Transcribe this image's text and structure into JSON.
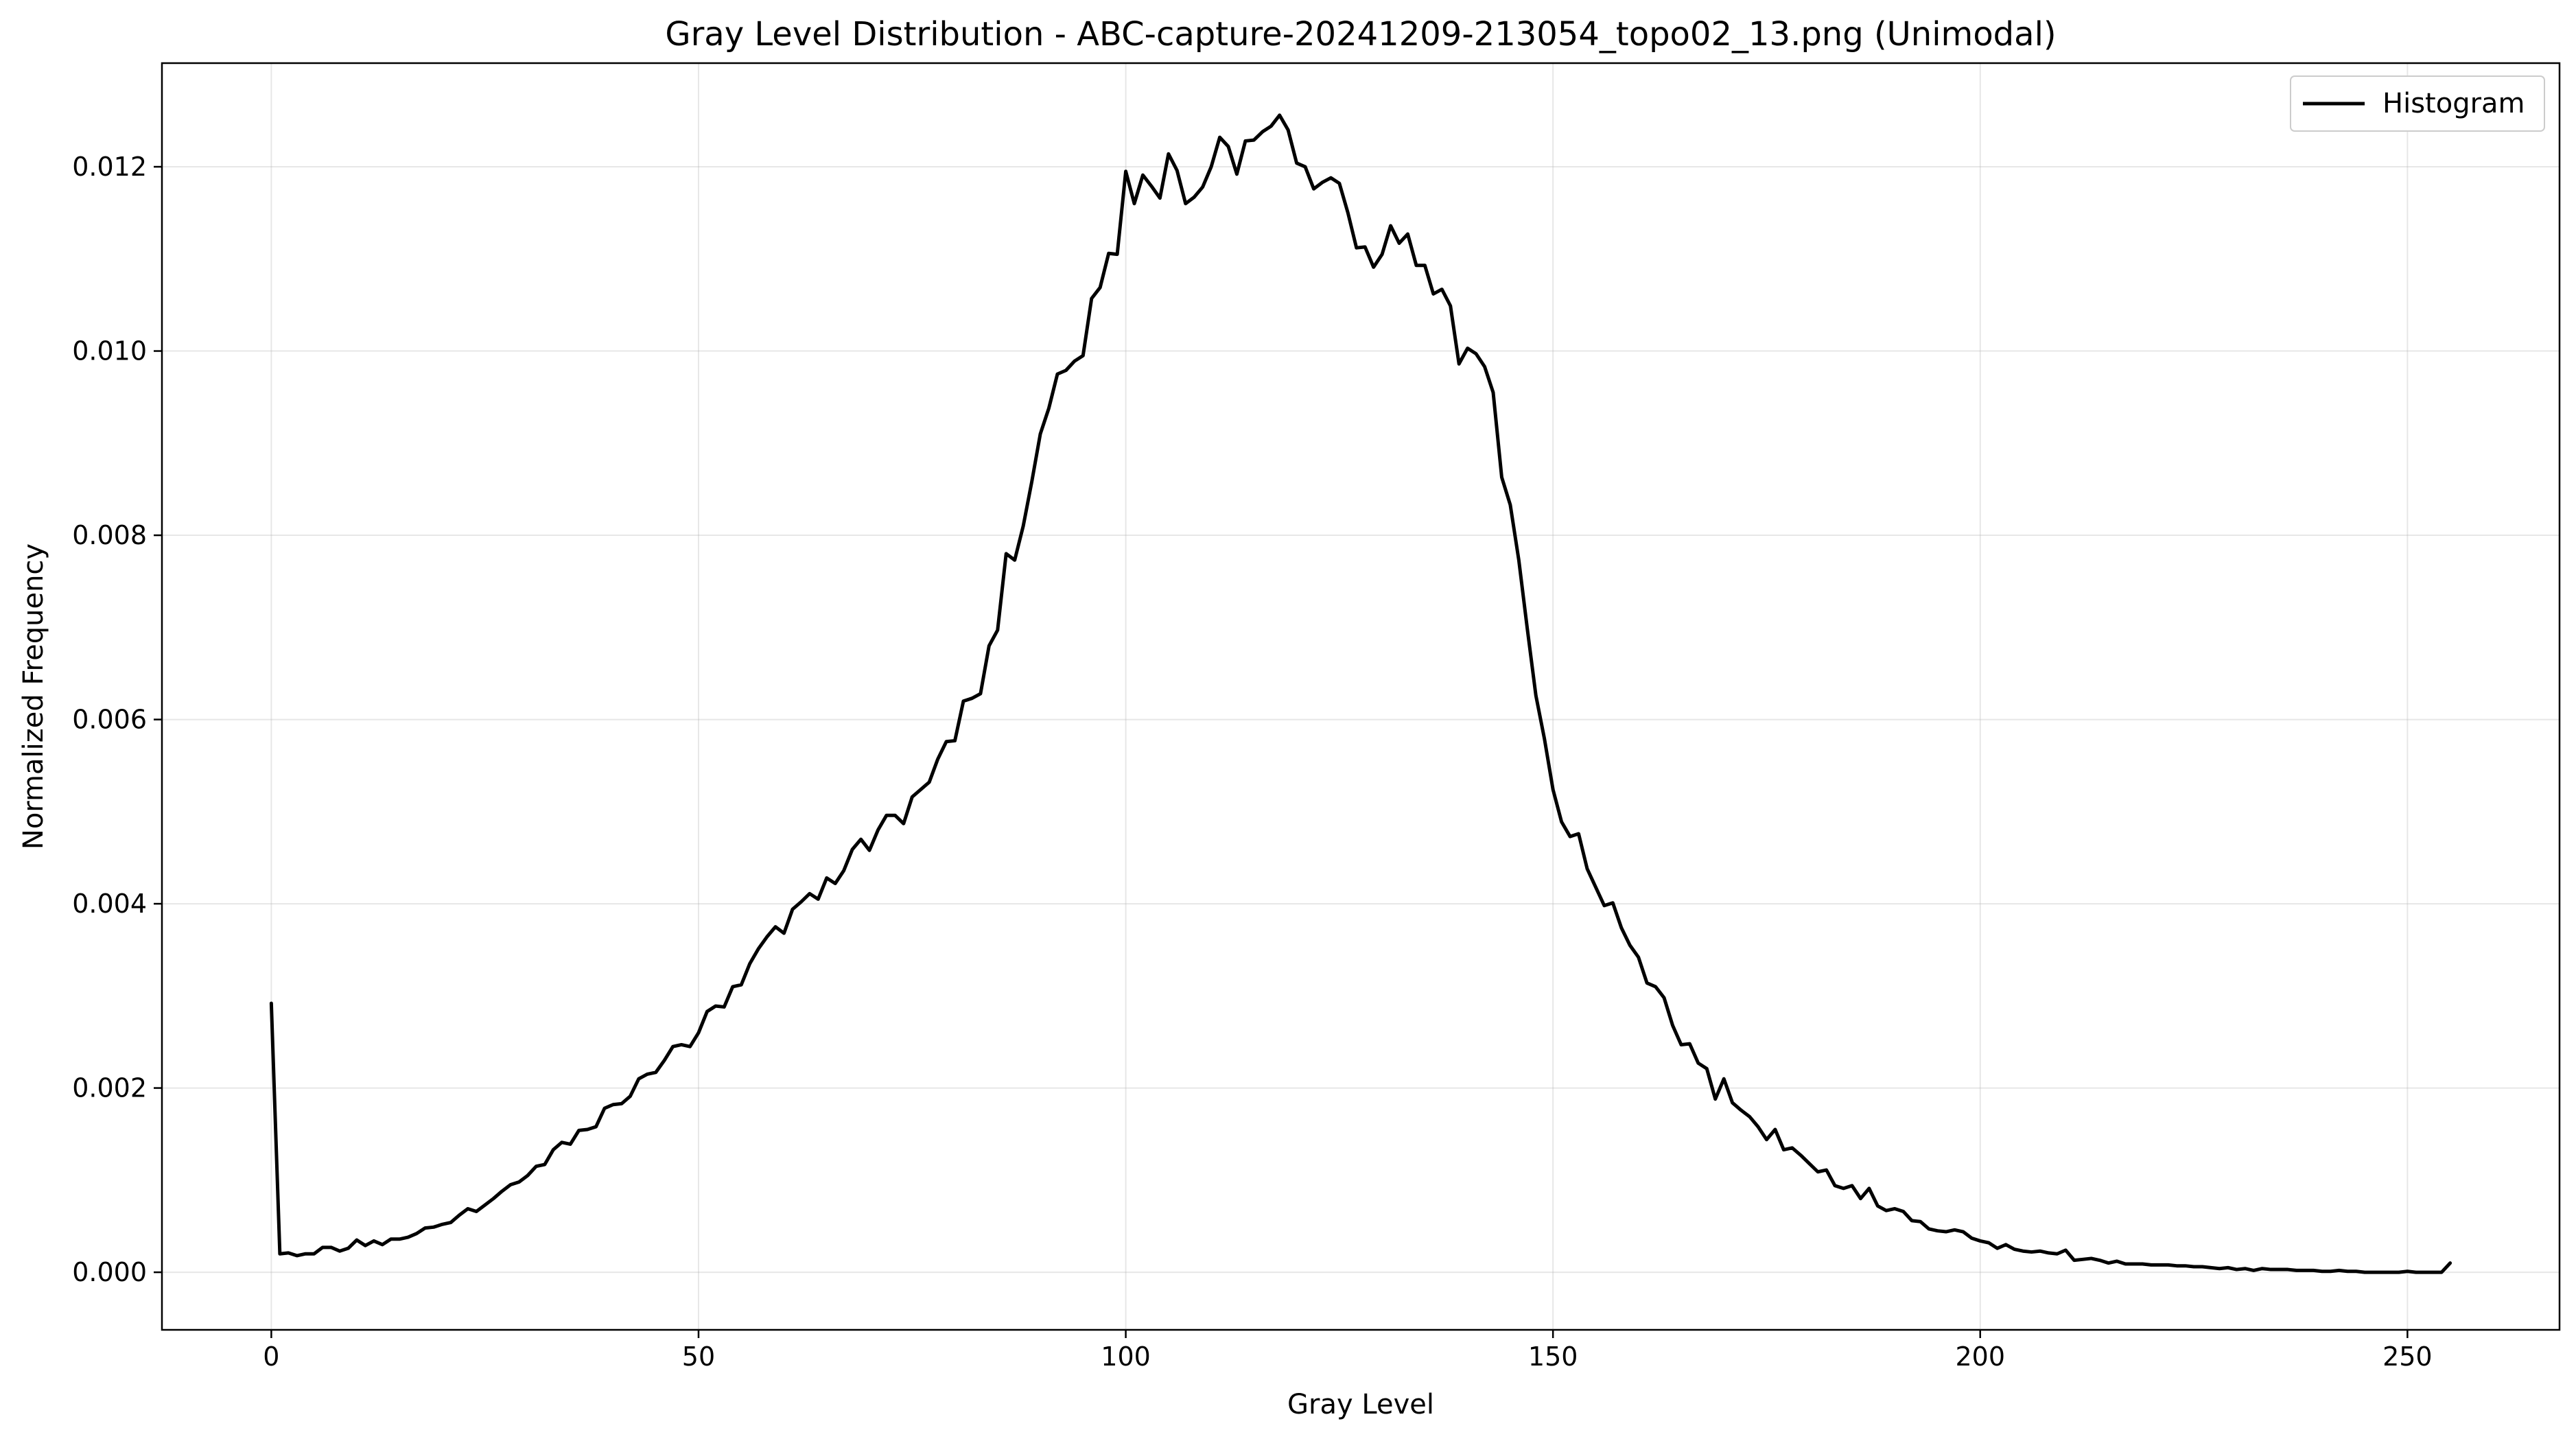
{
  "chart_data": {
    "type": "line",
    "title": "Gray Level Distribution - ABC-capture-20241209-213054_topo02_13.png (Unimodal)",
    "xlabel": "Gray Level",
    "ylabel": "Normalized Frequency",
    "xlim": [
      -12.8,
      267.8
    ],
    "ylim": [
      -0.000625,
      0.013125
    ],
    "x_ticks": [
      0,
      50,
      100,
      150,
      200,
      250
    ],
    "x_tick_labels": [
      "0",
      "50",
      "100",
      "150",
      "200",
      "250"
    ],
    "y_ticks": [
      0,
      0.002,
      0.004,
      0.006,
      0.008,
      0.01,
      0.012
    ],
    "y_tick_labels": [
      "0.000",
      "0.002",
      "0.004",
      "0.006",
      "0.008",
      "0.010",
      "0.012"
    ],
    "grid": true,
    "legend_position": "top-right",
    "line_color": "#000000",
    "series": [
      {
        "name": "Histogram",
        "x_start": 0,
        "x_step": 1,
        "values": [
          0.00292,
          0.0002,
          0.00021,
          0.00018,
          0.0002,
          0.0002,
          0.00027,
          0.00027,
          0.00023,
          0.00026,
          0.00035,
          0.00029,
          0.00034,
          0.0003,
          0.00036,
          0.00036,
          0.00038,
          0.00042,
          0.00048,
          0.00049,
          0.00052,
          0.00054,
          0.00062,
          0.00069,
          0.00066,
          0.00073,
          0.0008,
          0.00088,
          0.00095,
          0.00098,
          0.00105,
          0.00115,
          0.00117,
          0.00133,
          0.00141,
          0.00139,
          0.00154,
          0.00155,
          0.00158,
          0.00178,
          0.00182,
          0.00183,
          0.00191,
          0.0021,
          0.00215,
          0.00217,
          0.0023,
          0.00245,
          0.00247,
          0.00245,
          0.0026,
          0.00283,
          0.00289,
          0.00288,
          0.0031,
          0.00312,
          0.00335,
          0.00351,
          0.00364,
          0.00375,
          0.00368,
          0.00394,
          0.00402,
          0.00411,
          0.00405,
          0.00428,
          0.00422,
          0.00436,
          0.00459,
          0.0047,
          0.00458,
          0.0048,
          0.00496,
          0.00496,
          0.00487,
          0.00516,
          0.00524,
          0.00532,
          0.00557,
          0.00576,
          0.00577,
          0.0062,
          0.00623,
          0.00628,
          0.0068,
          0.00697,
          0.0078,
          0.00773,
          0.0081,
          0.00858,
          0.0091,
          0.00938,
          0.00975,
          0.00979,
          0.00989,
          0.00995,
          0.01057,
          0.01069,
          0.01106,
          0.01105,
          0.01195,
          0.0116,
          0.01191,
          0.01179,
          0.01166,
          0.01214,
          0.01196,
          0.0116,
          0.01167,
          0.01178,
          0.012,
          0.01232,
          0.01222,
          0.01192,
          0.01228,
          0.01229,
          0.01238,
          0.01244,
          0.01256,
          0.0124,
          0.01204,
          0.012,
          0.01176,
          0.01183,
          0.01188,
          0.01182,
          0.0115,
          0.01112,
          0.01113,
          0.01091,
          0.01105,
          0.01136,
          0.01117,
          0.01127,
          0.01093,
          0.01093,
          0.01062,
          0.01067,
          0.01049,
          0.00986,
          0.01003,
          0.00997,
          0.00983,
          0.00955,
          0.00863,
          0.00833,
          0.00773,
          0.00698,
          0.00626,
          0.00579,
          0.00524,
          0.00489,
          0.00473,
          0.00476,
          0.00438,
          0.00418,
          0.00398,
          0.00401,
          0.00374,
          0.00355,
          0.00342,
          0.00314,
          0.0031,
          0.00298,
          0.00268,
          0.00247,
          0.00248,
          0.00227,
          0.00221,
          0.00188,
          0.0021,
          0.00184,
          0.00176,
          0.00169,
          0.00158,
          0.00144,
          0.00155,
          0.00133,
          0.00135,
          0.00127,
          0.00118,
          0.00109,
          0.00111,
          0.00094,
          0.00091,
          0.00094,
          0.0008,
          0.00091,
          0.00072,
          0.00067,
          0.00069,
          0.00066,
          0.00056,
          0.00055,
          0.00047,
          0.00045,
          0.00044,
          0.00046,
          0.00044,
          0.00037,
          0.00034,
          0.00032,
          0.00026,
          0.0003,
          0.00025,
          0.00023,
          0.00022,
          0.00023,
          0.00021,
          0.0002,
          0.00024,
          0.00013,
          0.00014,
          0.00015,
          0.00013,
          0.0001,
          0.00012,
          9e-05,
          9e-05,
          9e-05,
          8e-05,
          8e-05,
          8e-05,
          7e-05,
          7e-05,
          6e-05,
          6e-05,
          5e-05,
          4e-05,
          5e-05,
          3e-05,
          4e-05,
          2e-05,
          4e-05,
          3e-05,
          3e-05,
          3e-05,
          2e-05,
          2e-05,
          2e-05,
          1e-05,
          1e-05,
          2e-05,
          1e-05,
          1e-05,
          0,
          0,
          0,
          0,
          0,
          1e-05,
          0,
          0,
          0,
          0,
          0.0001
        ]
      }
    ]
  }
}
